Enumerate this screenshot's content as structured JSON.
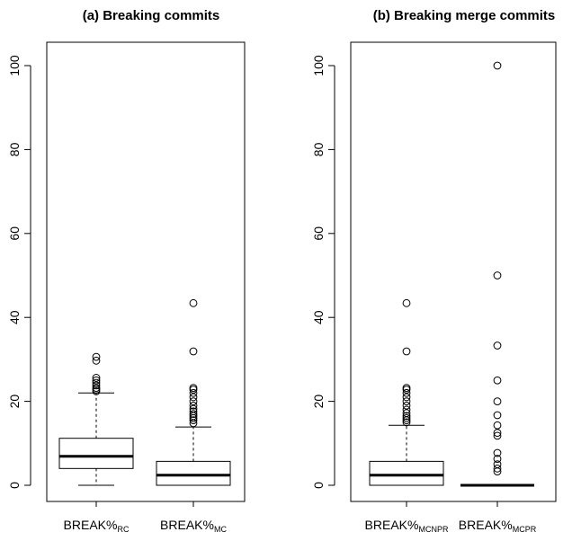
{
  "chart_data": [
    {
      "type": "box",
      "title": "(a) Breaking commits",
      "ylim": [
        0,
        100
      ],
      "yticks": [
        0,
        20,
        40,
        60,
        80,
        100
      ],
      "categories": [
        {
          "base": "BREAK%",
          "sub": "RC"
        },
        {
          "base": "BREAK%",
          "sub": "MC"
        }
      ],
      "boxes": [
        {
          "whisker_low": 0,
          "q1": 4.0,
          "median": 6.9,
          "q3": 11.2,
          "whisker_high": 22.0,
          "outliers": [
            22.4,
            22.8,
            23.2,
            23.8,
            24.4,
            25.0,
            25.6,
            29.7,
            30.6
          ]
        },
        {
          "whisker_low": 0,
          "q1": 0,
          "median": 2.4,
          "q3": 5.7,
          "whisker_high": 13.9,
          "outliers": [
            14.8,
            15.5,
            16.0,
            16.5,
            17.0,
            17.6,
            18.2,
            19.0,
            20.0,
            21.0,
            22.0,
            22.8,
            23.2,
            31.9,
            43.4
          ]
        }
      ]
    },
    {
      "type": "box",
      "title": "(b) Breaking merge commits",
      "ylim": [
        0,
        100
      ],
      "yticks": [
        0,
        20,
        40,
        60,
        80,
        100
      ],
      "categories": [
        {
          "base": "BREAK%",
          "sub": "MCNPR"
        },
        {
          "base": "BREAK%",
          "sub": "MCPR"
        }
      ],
      "boxes": [
        {
          "whisker_low": 0,
          "q1": 0,
          "median": 2.4,
          "q3": 5.7,
          "whisker_high": 14.3,
          "outliers": [
            15.0,
            15.5,
            16.0,
            16.5,
            17.2,
            18.0,
            19.0,
            20.0,
            21.0,
            22.0,
            22.8,
            23.2,
            31.9,
            43.4
          ]
        },
        {
          "whisker_low": 0,
          "q1": 0,
          "median": 0,
          "q3": 0,
          "whisker_high": 0,
          "outliers": [
            3.3,
            4.0,
            5.0,
            6.3,
            7.7,
            11.8,
            12.5,
            14.3,
            16.7,
            20.0,
            25.0,
            33.3,
            50.0,
            100.0
          ]
        }
      ]
    }
  ]
}
